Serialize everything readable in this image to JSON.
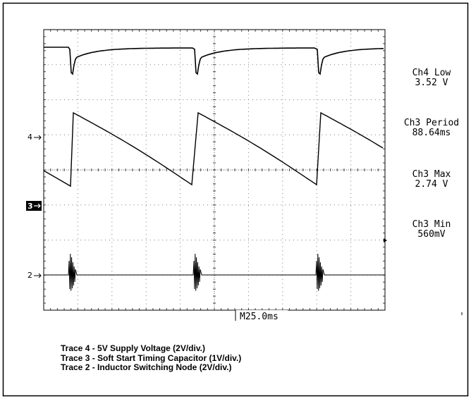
{
  "channel_markers": [
    "4",
    "3",
    "2"
  ],
  "measurements": [
    {
      "label": "Ch4 Low",
      "value": "3.52 V"
    },
    {
      "label": "Ch3 Period",
      "value": "88.64ms"
    },
    {
      "label": "Ch3 Max",
      "value": "2.74 V"
    },
    {
      "label": "Ch3 Min",
      "value": "560mV"
    }
  ],
  "timebase": "M25.0ms",
  "captions": [
    "Trace 4 - 5V Supply Voltage (2V/div.)",
    "Trace 3 - Soft Start Timing Capacitor (1V/div.)",
    "Trace 2 - Inductor Switching Node (2V/div.)"
  ]
}
